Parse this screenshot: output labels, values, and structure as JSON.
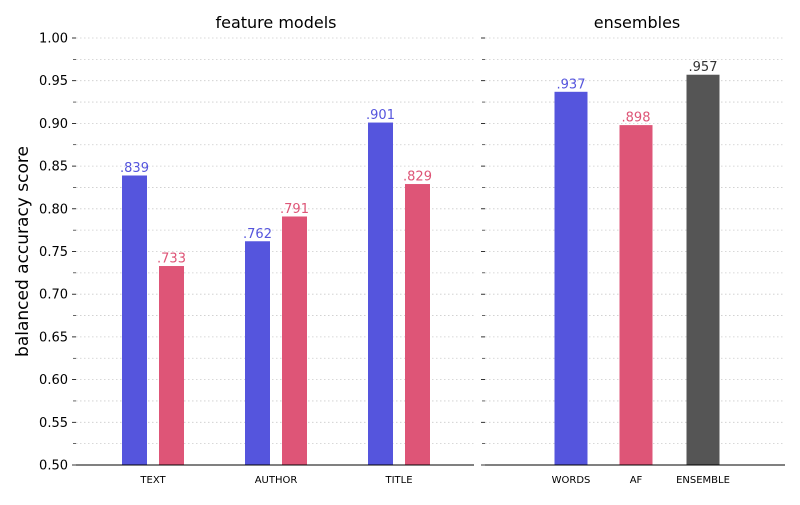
{
  "y_axis": {
    "label": "balanced accuracy score",
    "ylim": [
      0.5,
      1.0
    ],
    "major_ticks": [
      0.5,
      0.55,
      0.6,
      0.65,
      0.7,
      0.75,
      0.8,
      0.85,
      0.9,
      0.95,
      1.0
    ],
    "major_tick_labels": [
      "0.50",
      "0.55",
      "0.60",
      "0.65",
      "0.70",
      "0.75",
      "0.80",
      "0.85",
      "0.90",
      "0.95",
      "1.00"
    ],
    "grid": true
  },
  "colors": {
    "blue": "#5555dd",
    "pink": "#de5577",
    "gray": "#555555",
    "grid": "#cccccc",
    "axis": "#000000"
  },
  "chart_data": [
    {
      "type": "bar",
      "title": "feature models",
      "categories": [
        "TEXT",
        "AUTHOR",
        "TITLE"
      ],
      "series": [
        {
          "color": "blue",
          "values": [
            0.839,
            0.762,
            0.901
          ],
          "value_labels": [
            ".839",
            ".762",
            ".901"
          ]
        },
        {
          "color": "pink",
          "values": [
            0.733,
            0.791,
            0.829
          ],
          "value_labels": [
            ".733",
            ".791",
            ".829"
          ]
        }
      ],
      "ylim": [
        0.5,
        1.0
      ]
    },
    {
      "type": "bar",
      "title": "ensembles",
      "categories": [
        "WORDS",
        "AF",
        "ENSEMBLE"
      ],
      "values": [
        0.937,
        0.898,
        0.957
      ],
      "value_labels": [
        ".937",
        ".898",
        ".957"
      ],
      "bar_colors": [
        "blue",
        "pink",
        "gray"
      ],
      "ylim": [
        0.5,
        1.0
      ]
    }
  ]
}
